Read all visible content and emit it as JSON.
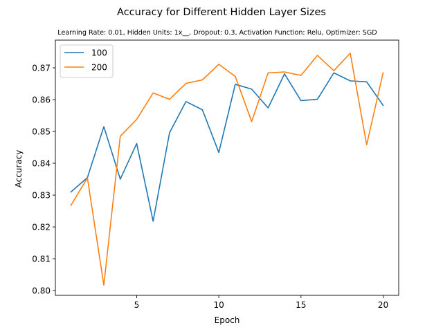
{
  "chart_data": {
    "type": "line",
    "title": "Accuracy for Different Hidden Layer Sizes",
    "subtitle": "Learning Rate: 0.01, Hidden Units: 1x__, Dropout: 0.3, Activation Function: Relu, Optimizer: SGD",
    "xlabel": "Epoch",
    "ylabel": "Accuracy",
    "xlim": [
      0.05,
      20.95
    ],
    "ylim": [
      0.7985,
      0.8787
    ],
    "xticks": [
      5,
      10,
      15,
      20
    ],
    "xtick_labels": [
      "5",
      "10",
      "15",
      "20"
    ],
    "yticks": [
      0.8,
      0.81,
      0.82,
      0.83,
      0.84,
      0.85,
      0.86,
      0.87
    ],
    "ytick_labels": [
      "0.80",
      "0.81",
      "0.82",
      "0.83",
      "0.84",
      "0.85",
      "0.86",
      "0.87"
    ],
    "grid": false,
    "legend_position": "top-left",
    "x": [
      1,
      2,
      3,
      4,
      5,
      6,
      7,
      8,
      9,
      10,
      11,
      12,
      13,
      14,
      15,
      16,
      17,
      18,
      19,
      20
    ],
    "series": [
      {
        "name": "100",
        "color": "#1f77b4",
        "values": [
          0.831,
          0.8355,
          0.8515,
          0.835,
          0.8462,
          0.8218,
          0.8496,
          0.8594,
          0.8568,
          0.8434,
          0.8648,
          0.8633,
          0.8574,
          0.8681,
          0.8597,
          0.8601,
          0.8684,
          0.8659,
          0.8656,
          0.8582
        ]
      },
      {
        "name": "200",
        "color": "#ff7f0e",
        "values": [
          0.8268,
          0.8354,
          0.8017,
          0.8485,
          0.8538,
          0.8621,
          0.8601,
          0.8651,
          0.8662,
          0.8711,
          0.8673,
          0.8531,
          0.8684,
          0.8687,
          0.8676,
          0.8739,
          0.8691,
          0.8746,
          0.8458,
          0.8684
        ]
      }
    ]
  }
}
